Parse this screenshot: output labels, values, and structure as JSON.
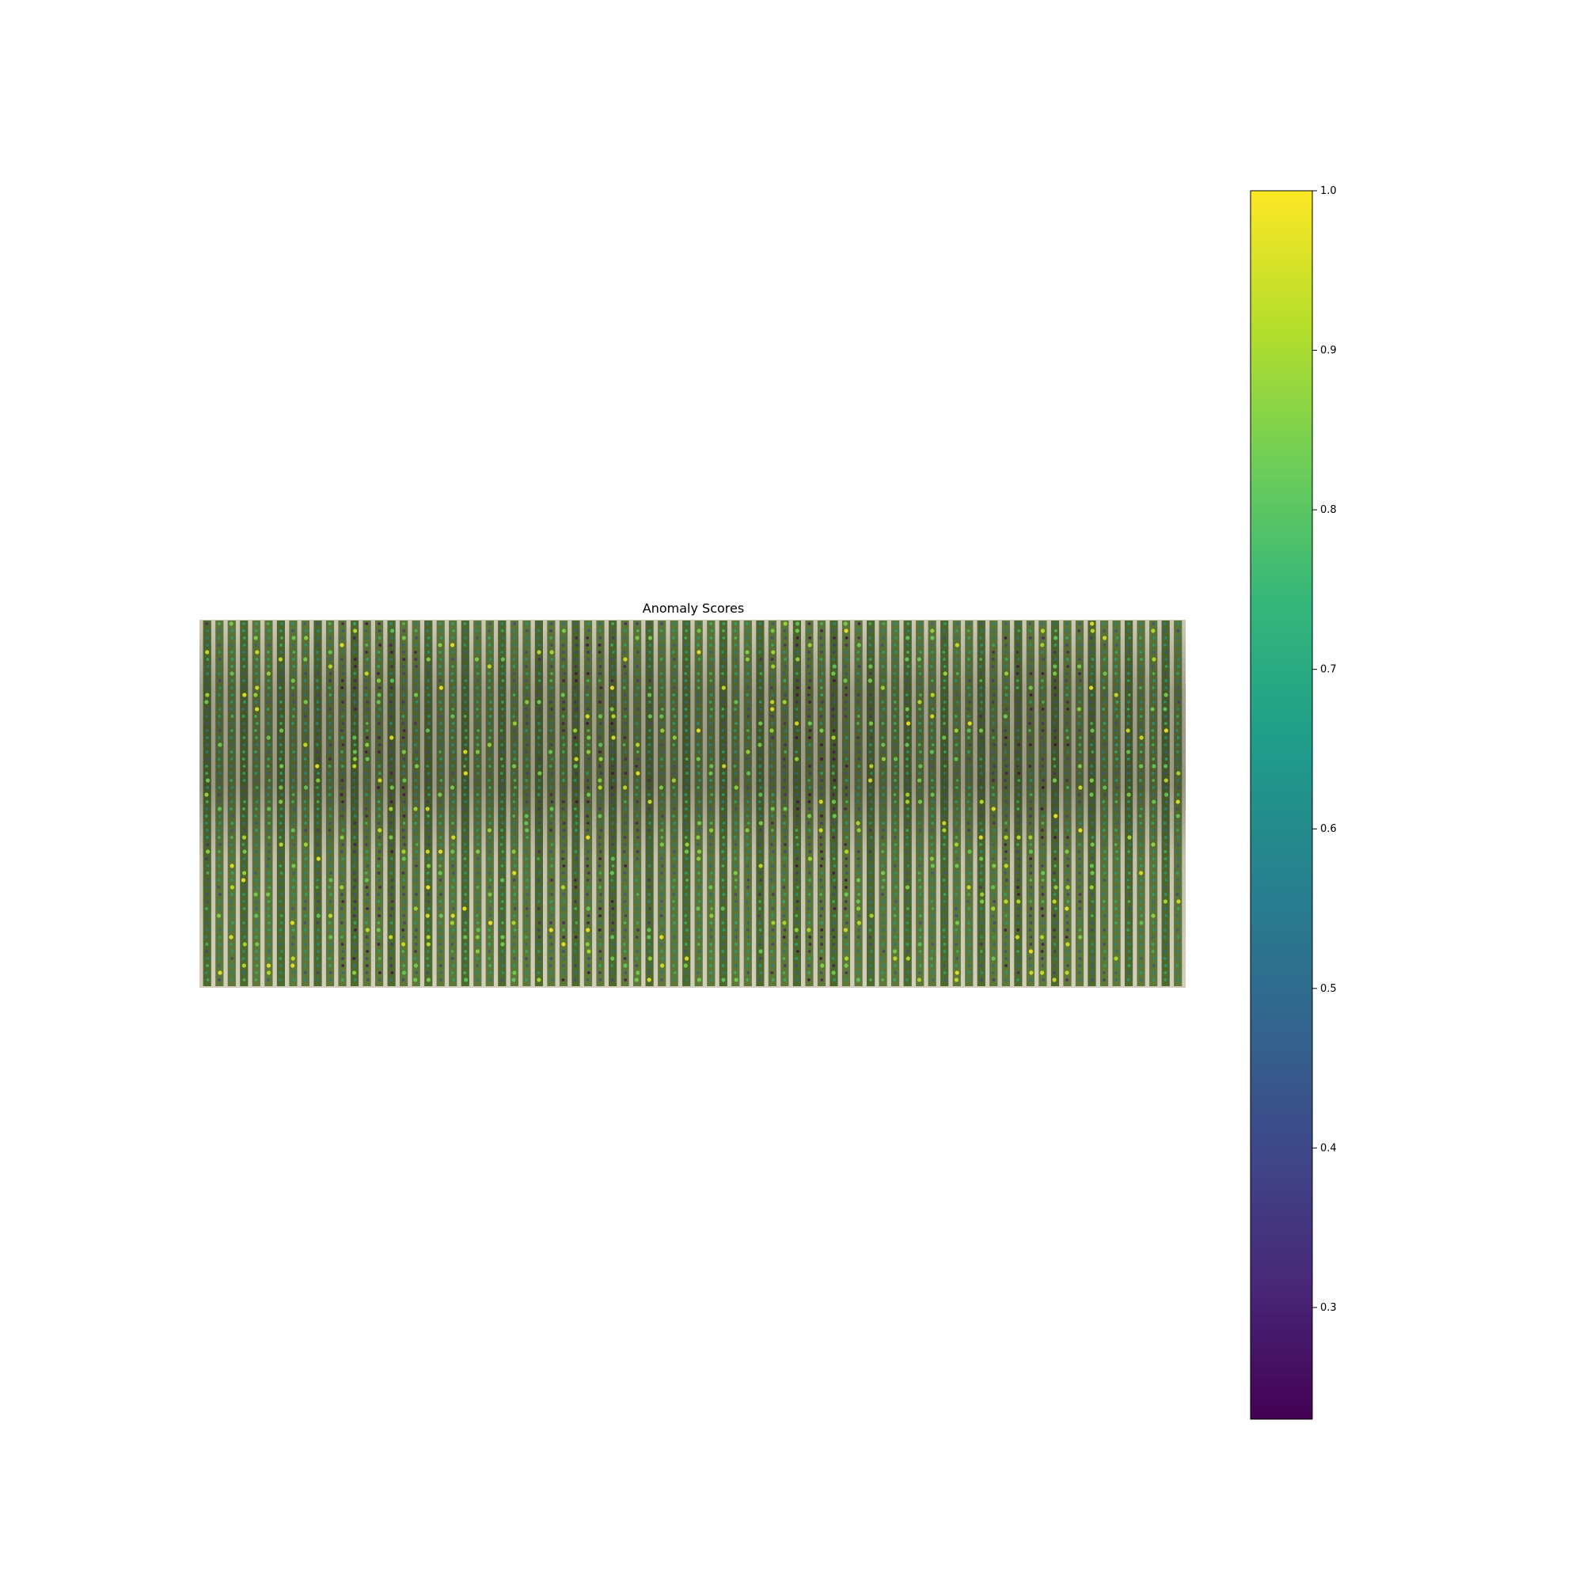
{
  "chart_data": {
    "type": "heatmap",
    "title": "Anomaly Scores",
    "background": "aerial image of crop field with vertical plant rows",
    "overlay": "scatter points colored by anomaly score",
    "colormap": "viridis",
    "colorbar": {
      "vmin": 0.23,
      "vmax": 1.0,
      "ticks": [
        0.3,
        0.4,
        0.5,
        0.6,
        0.7,
        0.8,
        0.9,
        1.0
      ],
      "tick_labels": [
        "0.3",
        "0.4",
        "0.5",
        "0.6",
        "0.7",
        "0.8",
        "0.9",
        "1.0"
      ],
      "placement": "right"
    },
    "axes_visible": false,
    "grid": false,
    "row_count": 80
  },
  "colors": {
    "viridis": [
      "#440154",
      "#482878",
      "#3e4989",
      "#31688e",
      "#26828e",
      "#1f9e89",
      "#35b779",
      "#6ece58",
      "#b5de2b",
      "#fde725"
    ],
    "row_green": "#5f7a3a",
    "row_green_dark": "#4e6b2e",
    "soil": "#d6d2bf"
  }
}
